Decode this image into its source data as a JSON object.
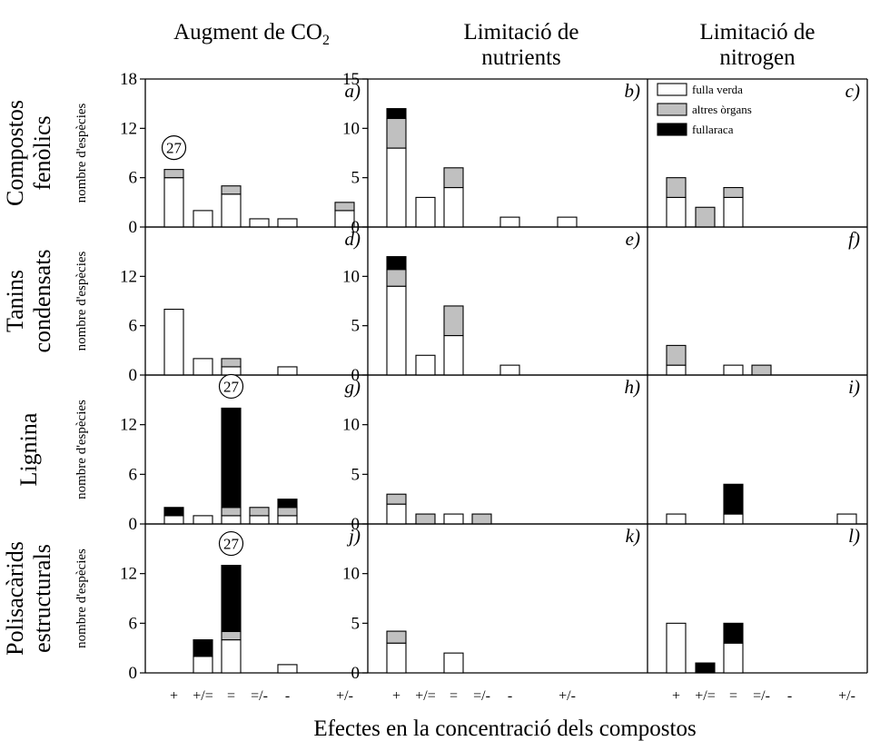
{
  "figure": {
    "xlabel": "Efectes en la concentració dels compostos",
    "ylabel": "nombre d'espècies",
    "categories": [
      "+",
      "+/=",
      "=",
      "=/-",
      "-",
      "+/-"
    ],
    "columns": [
      {
        "title_lines": [
          "Augment de CO"
        ],
        "title_sub": "2"
      },
      {
        "title_lines": [
          "Limitació de",
          "nutrients"
        ],
        "title_sub": ""
      },
      {
        "title_lines": [
          "Limitació de",
          "nitrogen"
        ],
        "title_sub": ""
      }
    ],
    "rows": [
      {
        "title_lines": [
          "Compostos",
          "fenòlics"
        ]
      },
      {
        "title_lines": [
          "Tanins",
          "condensats"
        ]
      },
      {
        "title_lines": [
          "Lignina"
        ]
      },
      {
        "title_lines": [
          "Polisacàrids",
          "estructurals"
        ]
      }
    ],
    "legend": [
      {
        "label": "fulla verda",
        "color": "#ffffff"
      },
      {
        "label": "altres òrgans",
        "color": "#c0c0c0"
      },
      {
        "label": "fullaraca",
        "color": "#000000"
      }
    ],
    "colors": {
      "fulla_verda": "#ffffff",
      "altres_organs": "#c0c0c0",
      "fullaraca": "#000000"
    }
  },
  "chart_data": [
    {
      "type": "bar",
      "stacked": true,
      "panel": "a)",
      "row": 0,
      "col": 0,
      "ylim": [
        0,
        18
      ],
      "yticks": [
        0,
        6,
        12,
        18
      ],
      "categories": [
        "+",
        "+/=",
        "=",
        "=/-",
        "-",
        "+/-"
      ],
      "series": [
        {
          "name": "fulla verda",
          "values": [
            6,
            2,
            4,
            1,
            1,
            2
          ]
        },
        {
          "name": "altres òrgans",
          "values": [
            1,
            0,
            1,
            0,
            0,
            1
          ]
        },
        {
          "name": "fullaraca",
          "values": [
            0,
            0,
            0,
            0,
            0,
            0
          ]
        }
      ],
      "annotations": [
        {
          "text": "27",
          "category": "+"
        }
      ]
    },
    {
      "type": "bar",
      "stacked": true,
      "panel": "b)",
      "row": 0,
      "col": 1,
      "ylim": [
        0,
        15
      ],
      "yticks": [
        0,
        5,
        10,
        15
      ],
      "categories": [
        "+",
        "+/=",
        "=",
        "=/-",
        "-",
        "+/-"
      ],
      "series": [
        {
          "name": "fulla verda",
          "values": [
            8,
            3,
            4,
            0,
            1,
            1
          ]
        },
        {
          "name": "altres òrgans",
          "values": [
            3,
            0,
            2,
            0,
            0,
            0
          ]
        },
        {
          "name": "fullaraca",
          "values": [
            1,
            0,
            0,
            0,
            0,
            0
          ]
        }
      ],
      "annotations": []
    },
    {
      "type": "bar",
      "stacked": true,
      "panel": "c)",
      "row": 0,
      "col": 2,
      "ylim": [
        0,
        15
      ],
      "yticks": [],
      "categories": [
        "+",
        "+/=",
        "=",
        "=/-",
        "-",
        "+/-"
      ],
      "series": [
        {
          "name": "fulla verda",
          "values": [
            3,
            0,
            3,
            0,
            0,
            0
          ]
        },
        {
          "name": "altres òrgans",
          "values": [
            2,
            2,
            1,
            0,
            0,
            0
          ]
        },
        {
          "name": "fullaraca",
          "values": [
            0,
            0,
            0,
            0,
            0,
            0
          ]
        }
      ],
      "annotations": []
    },
    {
      "type": "bar",
      "stacked": true,
      "panel": "d)",
      "row": 1,
      "col": 0,
      "ylim": [
        0,
        18
      ],
      "yticks": [
        0,
        6,
        12
      ],
      "categories": [
        "+",
        "+/=",
        "=",
        "=/-",
        "-",
        "+/-"
      ],
      "series": [
        {
          "name": "fulla verda",
          "values": [
            8,
            2,
            1,
            0,
            1,
            0
          ]
        },
        {
          "name": "altres òrgans",
          "values": [
            0,
            0,
            1,
            0,
            0,
            0
          ]
        },
        {
          "name": "fullaraca",
          "values": [
            0,
            0,
            0,
            0,
            0,
            0
          ]
        }
      ],
      "annotations": []
    },
    {
      "type": "bar",
      "stacked": true,
      "panel": "e)",
      "row": 1,
      "col": 1,
      "ylim": [
        0,
        15
      ],
      "yticks": [
        0,
        5,
        10
      ],
      "categories": [
        "+",
        "+/=",
        "=",
        "=/-",
        "-",
        "+/-"
      ],
      "series": [
        {
          "name": "fulla verda",
          "values": [
            9,
            2,
            4,
            0,
            1,
            0
          ]
        },
        {
          "name": "altres òrgans",
          "values": [
            1.7,
            0,
            3,
            0,
            0,
            0
          ]
        },
        {
          "name": "fullaraca",
          "values": [
            1.3,
            0,
            0,
            0,
            0,
            0
          ]
        }
      ],
      "annotations": []
    },
    {
      "type": "bar",
      "stacked": true,
      "panel": "f)",
      "row": 1,
      "col": 2,
      "ylim": [
        0,
        15
      ],
      "yticks": [],
      "categories": [
        "+",
        "+/=",
        "=",
        "=/-",
        "-",
        "+/-"
      ],
      "series": [
        {
          "name": "fulla verda",
          "values": [
            1,
            0,
            1,
            0,
            0,
            0
          ]
        },
        {
          "name": "altres òrgans",
          "values": [
            2,
            0,
            0,
            1,
            0,
            0
          ]
        },
        {
          "name": "fullaraca",
          "values": [
            0,
            0,
            0,
            0,
            0,
            0
          ]
        }
      ],
      "annotations": []
    },
    {
      "type": "bar",
      "stacked": true,
      "panel": "g)",
      "row": 2,
      "col": 0,
      "ylim": [
        0,
        18
      ],
      "yticks": [
        0,
        6,
        12
      ],
      "categories": [
        "+",
        "+/=",
        "=",
        "=/-",
        "-",
        "+/-"
      ],
      "series": [
        {
          "name": "fulla verda",
          "values": [
            1,
            1,
            1,
            1,
            1,
            0
          ]
        },
        {
          "name": "altres òrgans",
          "values": [
            0,
            0,
            1,
            1,
            1,
            0
          ]
        },
        {
          "name": "fullaraca",
          "values": [
            1,
            0,
            12,
            0,
            1,
            0
          ]
        }
      ],
      "annotations": [
        {
          "text": "27",
          "category": "="
        }
      ]
    },
    {
      "type": "bar",
      "stacked": true,
      "panel": "h)",
      "row": 2,
      "col": 1,
      "ylim": [
        0,
        15
      ],
      "yticks": [
        0,
        5,
        10
      ],
      "categories": [
        "+",
        "+/=",
        "=",
        "=/-",
        "-",
        "+/-"
      ],
      "series": [
        {
          "name": "fulla verda",
          "values": [
            2,
            0,
            1,
            0,
            0,
            0
          ]
        },
        {
          "name": "altres òrgans",
          "values": [
            1,
            1,
            0,
            1,
            0,
            0
          ]
        },
        {
          "name": "fullaraca",
          "values": [
            0,
            0,
            0,
            0,
            0,
            0
          ]
        }
      ],
      "annotations": []
    },
    {
      "type": "bar",
      "stacked": true,
      "panel": "i)",
      "row": 2,
      "col": 2,
      "ylim": [
        0,
        15
      ],
      "yticks": [],
      "categories": [
        "+",
        "+/=",
        "=",
        "=/-",
        "-",
        "+/-"
      ],
      "series": [
        {
          "name": "fulla verda",
          "values": [
            1,
            0,
            1,
            0,
            0,
            1
          ]
        },
        {
          "name": "altres òrgans",
          "values": [
            0,
            0,
            0,
            0,
            0,
            0
          ]
        },
        {
          "name": "fullaraca",
          "values": [
            0,
            0,
            3,
            0,
            0,
            0
          ]
        }
      ],
      "annotations": []
    },
    {
      "type": "bar",
      "stacked": true,
      "panel": "j)",
      "row": 3,
      "col": 0,
      "ylim": [
        0,
        18
      ],
      "yticks": [
        0,
        6,
        12
      ],
      "categories": [
        "+",
        "+/=",
        "=",
        "=/-",
        "-",
        "+/-"
      ],
      "series": [
        {
          "name": "fulla verda",
          "values": [
            0,
            2,
            4,
            0,
            1,
            0
          ]
        },
        {
          "name": "altres òrgans",
          "values": [
            0,
            0,
            1,
            0,
            0,
            0
          ]
        },
        {
          "name": "fullaraca",
          "values": [
            0,
            2,
            8,
            0,
            0,
            0
          ]
        }
      ],
      "annotations": [
        {
          "text": "27",
          "category": "="
        }
      ]
    },
    {
      "type": "bar",
      "stacked": true,
      "panel": "k)",
      "row": 3,
      "col": 1,
      "ylim": [
        0,
        15
      ],
      "yticks": [
        0,
        5,
        10
      ],
      "categories": [
        "+",
        "+/=",
        "=",
        "=/-",
        "-",
        "+/-"
      ],
      "series": [
        {
          "name": "fulla verda",
          "values": [
            3,
            0,
            2,
            0,
            0,
            0
          ]
        },
        {
          "name": "altres òrgans",
          "values": [
            1.2,
            0,
            0,
            0,
            0,
            0
          ]
        },
        {
          "name": "fullaraca",
          "values": [
            0,
            0,
            0,
            0,
            0,
            0
          ]
        }
      ],
      "annotations": []
    },
    {
      "type": "bar",
      "stacked": true,
      "panel": "l)",
      "row": 3,
      "col": 2,
      "ylim": [
        0,
        15
      ],
      "yticks": [],
      "categories": [
        "+",
        "+/=",
        "=",
        "=/-",
        "-",
        "+/-"
      ],
      "series": [
        {
          "name": "fulla verda",
          "values": [
            5,
            0,
            3,
            0,
            0,
            0
          ]
        },
        {
          "name": "altres òrgans",
          "values": [
            0,
            0,
            0,
            0,
            0,
            0
          ]
        },
        {
          "name": "fullaraca",
          "values": [
            0,
            1,
            2,
            0,
            0,
            0
          ]
        }
      ],
      "annotations": []
    }
  ]
}
